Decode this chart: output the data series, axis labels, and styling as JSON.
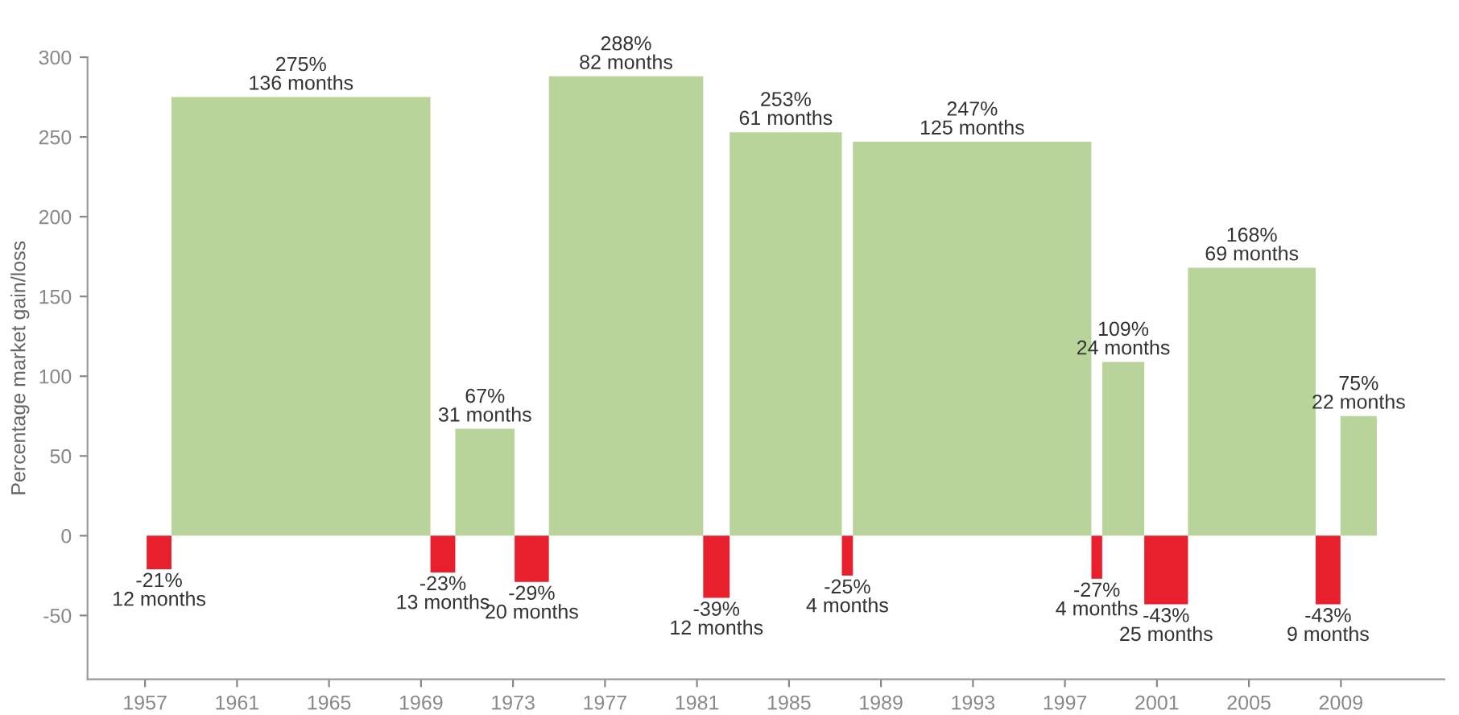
{
  "chart_data": {
    "type": "histogram",
    "ylabel": "Percentage market gain/loss",
    "bins": [
      1957.07,
      1958.15,
      1969.41,
      1970.49,
      1973.07,
      1974.56,
      1981.27,
      1982.42,
      1987.3,
      1987.78,
      1998.15,
      1998.62,
      2000.45,
      2002.35,
      2007.9,
      2008.98,
      2010.56
    ],
    "values": [
      -21,
      275,
      -23,
      67,
      -29,
      288,
      -39,
      253,
      -25,
      247,
      -27,
      109,
      -43,
      168,
      -43,
      75
    ],
    "colors": [
      "#e8202e",
      "#b9d49a",
      "#e8202e",
      "#b9d49a",
      "#e8202e",
      "#b9d49a",
      "#e8202e",
      "#b9d49a",
      "#e8202e",
      "#b9d49a",
      "#e8202e",
      "#b9d49a",
      "#e8202e",
      "#b9d49a",
      "#e8202e",
      "#b9d49a"
    ],
    "value_labels": [
      "-21%\n12 months",
      "275%\n136 months",
      "-23%\n13 months",
      "67%\n31 months",
      "-29%\n20 months",
      "288%\n82 months",
      "-39%\n12 months",
      "253%\n61 months",
      "-25%\n4 months",
      "247%\n125 months",
      "-27%\n4 months",
      "109%\n24 months",
      "-43%\n25 months",
      "168%\n69 months",
      "-43%\n9 months",
      "75%\n22 months"
    ],
    "xlim": [
      1954.5,
      2013.5
    ],
    "ylim": [
      -90,
      300
    ],
    "xticks": [
      1957,
      1961,
      1965,
      1969,
      1973,
      1977,
      1981,
      1985,
      1989,
      1993,
      1997,
      2001,
      2005,
      2009
    ],
    "yticks": [
      -50,
      0,
      50,
      100,
      150,
      200,
      250,
      300
    ],
    "grid": false
  }
}
